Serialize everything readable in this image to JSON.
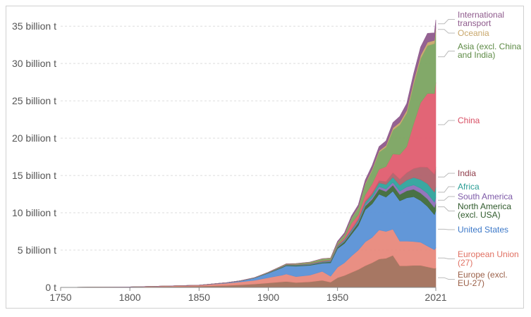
{
  "chart_data": {
    "type": "area",
    "stacked": true,
    "title": "",
    "xlabel": "",
    "ylabel": "",
    "xlim": [
      1750,
      2021
    ],
    "ylim": [
      0,
      37000000000
    ],
    "grid": "horizontal dashed",
    "legend_placement": "right",
    "x_ticks": [
      1750,
      1800,
      1850,
      1900,
      1950,
      2021
    ],
    "y_ticks": [
      {
        "value": 0,
        "label": "0 t"
      },
      {
        "value": 5000000000,
        "label": "5 billion t"
      },
      {
        "value": 10000000000,
        "label": "10 billion t"
      },
      {
        "value": 15000000000,
        "label": "15 billion t"
      },
      {
        "value": 20000000000,
        "label": "20 billion t"
      },
      {
        "value": 25000000000,
        "label": "25 billion t"
      },
      {
        "value": 30000000000,
        "label": "30 billion t"
      },
      {
        "value": 35000000000,
        "label": "35 billion t"
      }
    ],
    "x": [
      1750,
      1800,
      1850,
      1870,
      1880,
      1890,
      1900,
      1910,
      1913,
      1920,
      1930,
      1939,
      1945,
      1950,
      1955,
      1960,
      1965,
      1970,
      1975,
      1980,
      1985,
      1990,
      1995,
      2000,
      2005,
      2010,
      2015,
      2020,
      2021
    ],
    "series": [
      {
        "name": "Europe (excl. EU-27)",
        "color": "#a2705b",
        "values": [
          0.01,
          0.05,
          0.17,
          0.27,
          0.35,
          0.45,
          0.6,
          0.75,
          0.8,
          0.65,
          0.75,
          0.95,
          0.7,
          1.3,
          1.6,
          2.0,
          2.4,
          2.9,
          3.3,
          3.8,
          3.9,
          4.3,
          2.9,
          2.9,
          2.95,
          2.95,
          2.75,
          2.55,
          2.6
        ]
      },
      {
        "name": "European Union (27)",
        "color": "#e8897c",
        "values": [
          0.0,
          0.02,
          0.12,
          0.3,
          0.4,
          0.5,
          0.7,
          0.9,
          1.0,
          0.8,
          0.9,
          1.2,
          0.8,
          1.4,
          1.7,
          2.2,
          2.6,
          3.2,
          3.4,
          3.9,
          3.6,
          3.5,
          3.3,
          3.3,
          3.2,
          3.1,
          2.8,
          2.5,
          2.7
        ]
      },
      {
        "name": "United States",
        "color": "#5a91d6",
        "values": [
          0.0,
          0.0,
          0.01,
          0.06,
          0.12,
          0.3,
          0.6,
          1.0,
          1.1,
          1.4,
          1.3,
          1.1,
          1.8,
          2.5,
          2.6,
          2.9,
          3.3,
          4.3,
          4.5,
          4.8,
          4.6,
          5.1,
          5.4,
          5.8,
          6.0,
          5.6,
          5.3,
          4.7,
          5.0
        ]
      },
      {
        "name": "North America (excl. USA)",
        "color": "#3f6a3a",
        "values": [
          0.0,
          0.0,
          0.0,
          0.01,
          0.02,
          0.03,
          0.05,
          0.08,
          0.09,
          0.1,
          0.1,
          0.1,
          0.15,
          0.2,
          0.25,
          0.3,
          0.4,
          0.5,
          0.6,
          0.7,
          0.75,
          0.8,
          0.85,
          0.95,
          1.0,
          1.0,
          1.0,
          0.95,
          1.0
        ]
      },
      {
        "name": "South America",
        "color": "#8f6fb8",
        "values": [
          0.0,
          0.0,
          0.0,
          0.0,
          0.0,
          0.0,
          0.01,
          0.02,
          0.02,
          0.03,
          0.04,
          0.05,
          0.06,
          0.08,
          0.1,
          0.13,
          0.16,
          0.2,
          0.25,
          0.32,
          0.34,
          0.38,
          0.45,
          0.52,
          0.58,
          0.65,
          0.75,
          0.72,
          0.75
        ]
      },
      {
        "name": "Africa",
        "color": "#2fa39c",
        "values": [
          0.0,
          0.0,
          0.0,
          0.0,
          0.0,
          0.01,
          0.02,
          0.03,
          0.03,
          0.04,
          0.05,
          0.06,
          0.07,
          0.1,
          0.12,
          0.15,
          0.2,
          0.3,
          0.38,
          0.5,
          0.6,
          0.7,
          0.8,
          0.9,
          1.0,
          1.15,
          1.3,
          1.35,
          1.4
        ]
      },
      {
        "name": "India",
        "color": "#b0616a",
        "values": [
          0.0,
          0.0,
          0.0,
          0.0,
          0.01,
          0.01,
          0.02,
          0.03,
          0.03,
          0.04,
          0.05,
          0.06,
          0.06,
          0.07,
          0.08,
          0.12,
          0.16,
          0.2,
          0.25,
          0.3,
          0.4,
          0.6,
          0.8,
          1.0,
          1.2,
          1.7,
          2.2,
          2.4,
          2.7
        ]
      },
      {
        "name": "China",
        "color": "#e05d6f",
        "values": [
          0.0,
          0.0,
          0.0,
          0.0,
          0.0,
          0.0,
          0.0,
          0.01,
          0.01,
          0.02,
          0.03,
          0.05,
          0.06,
          0.08,
          0.2,
          0.78,
          0.5,
          0.8,
          1.2,
          1.5,
          2.0,
          2.5,
          3.3,
          3.5,
          6.0,
          8.6,
          9.9,
          10.8,
          11.3
        ]
      },
      {
        "name": "Asia (excl. China and India)",
        "color": "#7ba461",
        "values": [
          0.0,
          0.0,
          0.0,
          0.0,
          0.0,
          0.01,
          0.03,
          0.06,
          0.07,
          0.1,
          0.15,
          0.25,
          0.2,
          0.25,
          0.4,
          0.6,
          0.9,
          1.4,
          1.8,
          2.3,
          2.6,
          3.2,
          4.0,
          4.5,
          5.3,
          5.9,
          6.4,
          6.7,
          6.9
        ]
      },
      {
        "name": "Oceania",
        "color": "#c8a76b",
        "values": [
          0.0,
          0.0,
          0.0,
          0.0,
          0.0,
          0.01,
          0.01,
          0.02,
          0.02,
          0.02,
          0.02,
          0.03,
          0.04,
          0.05,
          0.06,
          0.08,
          0.1,
          0.13,
          0.16,
          0.2,
          0.24,
          0.3,
          0.33,
          0.38,
          0.42,
          0.45,
          0.45,
          0.44,
          0.45
        ]
      },
      {
        "name": "International transport",
        "color": "#8e5a8c",
        "values": [
          0.0,
          0.0,
          0.0,
          0.0,
          0.0,
          0.0,
          0.0,
          0.0,
          0.0,
          0.0,
          0.0,
          0.0,
          0.0,
          0.15,
          0.2,
          0.3,
          0.35,
          0.45,
          0.5,
          0.55,
          0.6,
          0.7,
          0.8,
          0.9,
          1.0,
          1.1,
          1.2,
          1.0,
          1.05
        ]
      }
    ],
    "legend": [
      {
        "lines": [
          "International",
          "transport"
        ],
        "color": "#8e5a8c"
      },
      {
        "lines": [
          "Oceania"
        ],
        "color": "#c8a76b"
      },
      {
        "lines": [
          "Asia (excl. China",
          "and India)"
        ],
        "color": "#5d8a45"
      },
      {
        "lines": [
          "China"
        ],
        "color": "#d84e63"
      },
      {
        "lines": [
          "India"
        ],
        "color": "#8f3d4a"
      },
      {
        "lines": [
          "Africa"
        ],
        "color": "#2a9d95"
      },
      {
        "lines": [
          "South America"
        ],
        "color": "#7e5aa8"
      },
      {
        "lines": [
          "North America",
          "(excl. USA)"
        ],
        "color": "#2f5a2b"
      },
      {
        "lines": [
          "United States"
        ],
        "color": "#3c78c8"
      },
      {
        "lines": [
          "European Union",
          "(27)"
        ],
        "color": "#e07062"
      },
      {
        "lines": [
          "Europe (excl.",
          "EU-27)"
        ],
        "color": "#9a5f47"
      }
    ],
    "value_unit_multiplier": 1000000000
  }
}
